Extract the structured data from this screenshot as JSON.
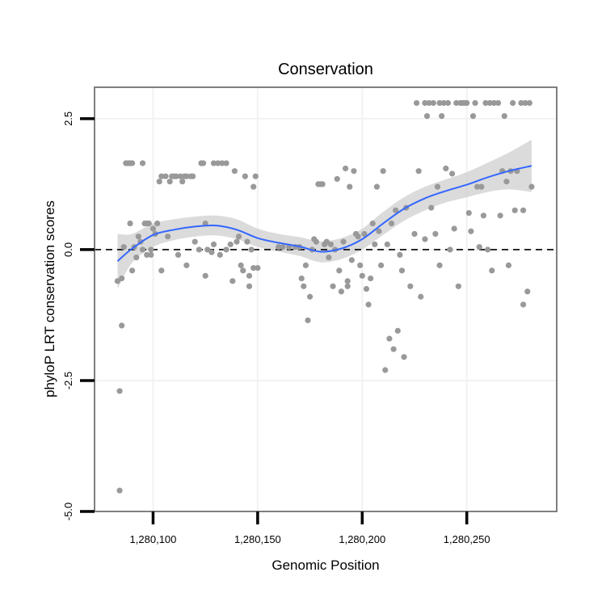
{
  "chart_data": {
    "type": "scatter",
    "title": "Conservation",
    "xlabel": "Genomic Position",
    "ylabel": "phyloP LRT conservation scores",
    "xlim": [
      1280072,
      1280293
    ],
    "ylim": [
      -5,
      3.1
    ],
    "x_ticks": [
      1280100,
      1280150,
      1280200,
      1280250
    ],
    "x_tick_labels": [
      "1,280,100",
      "1,280,150",
      "1,280,200",
      "1,280,250"
    ],
    "y_ticks": [
      -5,
      -2.5,
      0,
      2.5
    ],
    "y_tick_labels": [
      "-5.0",
      "-2.5",
      "0.0",
      "2.5"
    ],
    "grid": true,
    "reference_line": {
      "y": 0,
      "style": "dashed"
    },
    "colors": {
      "points": "#999999",
      "smooth_line": "#3366ff",
      "confidence_band": "#cccccc",
      "panel_border": "#7f7f7f",
      "grid": "#f2f2f2",
      "reference_line": "#000000"
    },
    "points": [
      [
        1280083,
        -0.6
      ],
      [
        1280084,
        -2.7
      ],
      [
        1280084,
        -4.6
      ],
      [
        1280085,
        -1.45
      ],
      [
        1280085,
        -0.55
      ],
      [
        1280086,
        0.05
      ],
      [
        1280087,
        1.65
      ],
      [
        1280088,
        1.65
      ],
      [
        1280089,
        1.65
      ],
      [
        1280089,
        0.5
      ],
      [
        1280090,
        1.65
      ],
      [
        1280090,
        -0.4
      ],
      [
        1280091,
        0.05
      ],
      [
        1280092,
        -0.15
      ],
      [
        1280093,
        0.25
      ],
      [
        1280094,
        0.15
      ],
      [
        1280095,
        1.65
      ],
      [
        1280095,
        0.0
      ],
      [
        1280096,
        0.5
      ],
      [
        1280097,
        0.5
      ],
      [
        1280097,
        -0.1
      ],
      [
        1280098,
        0.5
      ],
      [
        1280099,
        0.0
      ],
      [
        1280099,
        -0.1
      ],
      [
        1280100,
        0.4
      ],
      [
        1280101,
        0.3
      ],
      [
        1280102,
        0.5
      ],
      [
        1280103,
        1.3
      ],
      [
        1280104,
        1.4
      ],
      [
        1280104,
        -0.4
      ],
      [
        1280106,
        1.4
      ],
      [
        1280107,
        0.25
      ],
      [
        1280108,
        1.3
      ],
      [
        1280109,
        1.4
      ],
      [
        1280110,
        1.4
      ],
      [
        1280111,
        1.4
      ],
      [
        1280112,
        -0.1
      ],
      [
        1280113,
        1.4
      ],
      [
        1280114,
        1.3
      ],
      [
        1280115,
        1.4
      ],
      [
        1280116,
        1.4
      ],
      [
        1280116,
        -0.3
      ],
      [
        1280118,
        1.4
      ],
      [
        1280119,
        1.4
      ],
      [
        1280120,
        0.15
      ],
      [
        1280122,
        0.0
      ],
      [
        1280123,
        1.65
      ],
      [
        1280124,
        1.65
      ],
      [
        1280125,
        0.5
      ],
      [
        1280125,
        -0.5
      ],
      [
        1280126,
        0.0
      ],
      [
        1280128,
        -0.05
      ],
      [
        1280129,
        1.65
      ],
      [
        1280129,
        0.1
      ],
      [
        1280131,
        1.65
      ],
      [
        1280132,
        -0.1
      ],
      [
        1280133,
        1.65
      ],
      [
        1280135,
        1.65
      ],
      [
        1280135,
        0.0
      ],
      [
        1280137,
        0.1
      ],
      [
        1280138,
        -0.6
      ],
      [
        1280139,
        1.5
      ],
      [
        1280140,
        0.15
      ],
      [
        1280141,
        0.25
      ],
      [
        1280142,
        -0.3
      ],
      [
        1280143,
        -0.4
      ],
      [
        1280144,
        1.4
      ],
      [
        1280145,
        0.15
      ],
      [
        1280146,
        -0.5
      ],
      [
        1280146,
        -0.7
      ],
      [
        1280147,
        0.0
      ],
      [
        1280148,
        1.2
      ],
      [
        1280148,
        -0.35
      ],
      [
        1280149,
        1.4
      ],
      [
        1280150,
        -0.35
      ],
      [
        1280160,
        0.05
      ],
      [
        1280162,
        0.05
      ],
      [
        1280165,
        0.05
      ],
      [
        1280168,
        0.05
      ],
      [
        1280170,
        0.05
      ],
      [
        1280171,
        -0.55
      ],
      [
        1280172,
        -0.7
      ],
      [
        1280173,
        -0.3
      ],
      [
        1280174,
        -1.35
      ],
      [
        1280175,
        -0.9
      ],
      [
        1280176,
        0.0
      ],
      [
        1280177,
        0.2
      ],
      [
        1280178,
        0.15
      ],
      [
        1280179,
        1.25
      ],
      [
        1280180,
        1.25
      ],
      [
        1280181,
        1.25
      ],
      [
        1280182,
        0.1
      ],
      [
        1280183,
        0.15
      ],
      [
        1280184,
        -0.15
      ],
      [
        1280185,
        0.1
      ],
      [
        1280186,
        -0.7
      ],
      [
        1280187,
        0.0
      ],
      [
        1280188,
        1.35
      ],
      [
        1280189,
        -0.4
      ],
      [
        1280190,
        -0.8
      ],
      [
        1280191,
        0.15
      ],
      [
        1280192,
        1.55
      ],
      [
        1280193,
        -0.7
      ],
      [
        1280193,
        -0.6
      ],
      [
        1280194,
        1.2
      ],
      [
        1280195,
        -0.2
      ],
      [
        1280196,
        1.5
      ],
      [
        1280197,
        0.3
      ],
      [
        1280198,
        0.25
      ],
      [
        1280199,
        -0.3
      ],
      [
        1280200,
        -0.5
      ],
      [
        1280201,
        0.3
      ],
      [
        1280202,
        -0.75
      ],
      [
        1280203,
        -1.05
      ],
      [
        1280204,
        -0.55
      ],
      [
        1280205,
        0.5
      ],
      [
        1280206,
        0.1
      ],
      [
        1280207,
        1.2
      ],
      [
        1280208,
        0.35
      ],
      [
        1280209,
        -0.3
      ],
      [
        1280210,
        1.5
      ],
      [
        1280211,
        -2.3
      ],
      [
        1280212,
        0.1
      ],
      [
        1280213,
        -1.7
      ],
      [
        1280214,
        0.5
      ],
      [
        1280215,
        -1.9
      ],
      [
        1280216,
        0.75
      ],
      [
        1280217,
        -1.55
      ],
      [
        1280218,
        -0.1
      ],
      [
        1280219,
        -0.4
      ],
      [
        1280220,
        -2.05
      ],
      [
        1280221,
        0.8
      ],
      [
        1280223,
        -0.7
      ],
      [
        1280225,
        0.3
      ],
      [
        1280226,
        2.8
      ],
      [
        1280227,
        1.5
      ],
      [
        1280228,
        -0.9
      ],
      [
        1280230,
        2.8
      ],
      [
        1280230,
        0.2
      ],
      [
        1280231,
        2.55
      ],
      [
        1280232,
        2.8
      ],
      [
        1280233,
        0.8
      ],
      [
        1280234,
        2.8
      ],
      [
        1280235,
        0.3
      ],
      [
        1280236,
        1.2
      ],
      [
        1280237,
        2.8
      ],
      [
        1280237,
        -0.3
      ],
      [
        1280238,
        2.55
      ],
      [
        1280239,
        2.8
      ],
      [
        1280240,
        1.55
      ],
      [
        1280241,
        2.8
      ],
      [
        1280242,
        0.0
      ],
      [
        1280243,
        1.45
      ],
      [
        1280244,
        0.4
      ],
      [
        1280245,
        2.8
      ],
      [
        1280246,
        -0.7
      ],
      [
        1280247,
        2.8
      ],
      [
        1280248,
        2.8
      ],
      [
        1280249,
        2.8
      ],
      [
        1280250,
        2.8
      ],
      [
        1280251,
        0.7
      ],
      [
        1280252,
        0.35
      ],
      [
        1280253,
        2.55
      ],
      [
        1280254,
        2.8
      ],
      [
        1280255,
        1.2
      ],
      [
        1280256,
        0.05
      ],
      [
        1280257,
        1.2
      ],
      [
        1280258,
        0.65
      ],
      [
        1280259,
        2.8
      ],
      [
        1280260,
        0.0
      ],
      [
        1280261,
        2.8
      ],
      [
        1280262,
        -0.4
      ],
      [
        1280263,
        2.8
      ],
      [
        1280265,
        2.8
      ],
      [
        1280266,
        0.65
      ],
      [
        1280267,
        1.5
      ],
      [
        1280268,
        2.55
      ],
      [
        1280269,
        1.3
      ],
      [
        1280270,
        -0.3
      ],
      [
        1280271,
        1.5
      ],
      [
        1280272,
        2.8
      ],
      [
        1280273,
        0.75
      ],
      [
        1280274,
        1.5
      ],
      [
        1280276,
        2.8
      ],
      [
        1280277,
        -1.05
      ],
      [
        1280277,
        0.75
      ],
      [
        1280278,
        2.8
      ],
      [
        1280279,
        -0.8
      ],
      [
        1280280,
        2.8
      ],
      [
        1280281,
        1.2
      ]
    ],
    "smooth": [
      {
        "x": 1280083,
        "y": -0.22,
        "lo": -0.75,
        "hi": 0.3
      },
      {
        "x": 1280090,
        "y": 0.02,
        "lo": -0.25,
        "hi": 0.3
      },
      {
        "x": 1280100,
        "y": 0.28,
        "lo": 0.05,
        "hi": 0.5
      },
      {
        "x": 1280110,
        "y": 0.38,
        "lo": 0.18,
        "hi": 0.58
      },
      {
        "x": 1280120,
        "y": 0.44,
        "lo": 0.25,
        "hi": 0.63
      },
      {
        "x": 1280130,
        "y": 0.46,
        "lo": 0.27,
        "hi": 0.65
      },
      {
        "x": 1280140,
        "y": 0.38,
        "lo": 0.2,
        "hi": 0.58
      },
      {
        "x": 1280150,
        "y": 0.22,
        "lo": 0.05,
        "hi": 0.4
      },
      {
        "x": 1280160,
        "y": 0.13,
        "lo": -0.04,
        "hi": 0.3
      },
      {
        "x": 1280170,
        "y": 0.06,
        "lo": -0.12,
        "hi": 0.24
      },
      {
        "x": 1280180,
        "y": -0.04,
        "lo": -0.24,
        "hi": 0.16
      },
      {
        "x": 1280190,
        "y": 0.02,
        "lo": -0.18,
        "hi": 0.22
      },
      {
        "x": 1280200,
        "y": 0.2,
        "lo": 0.0,
        "hi": 0.4
      },
      {
        "x": 1280210,
        "y": 0.5,
        "lo": 0.28,
        "hi": 0.72
      },
      {
        "x": 1280220,
        "y": 0.78,
        "lo": 0.55,
        "hi": 1.0
      },
      {
        "x": 1280230,
        "y": 0.98,
        "lo": 0.75,
        "hi": 1.2
      },
      {
        "x": 1280240,
        "y": 1.12,
        "lo": 0.9,
        "hi": 1.34
      },
      {
        "x": 1280250,
        "y": 1.24,
        "lo": 1.0,
        "hi": 1.48
      },
      {
        "x": 1280260,
        "y": 1.38,
        "lo": 1.1,
        "hi": 1.66
      },
      {
        "x": 1280270,
        "y": 1.5,
        "lo": 1.15,
        "hi": 1.85
      },
      {
        "x": 1280281,
        "y": 1.6,
        "lo": 1.1,
        "hi": 2.1
      }
    ]
  }
}
